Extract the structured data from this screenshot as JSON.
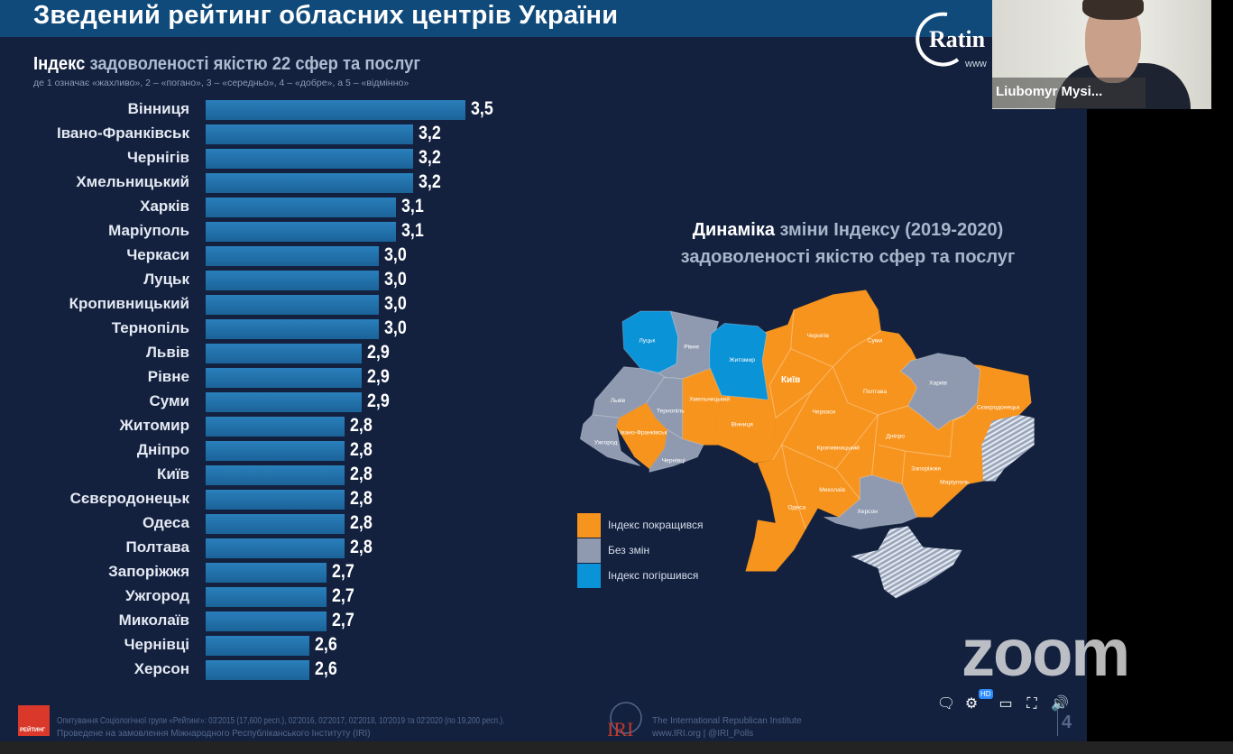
{
  "slide": {
    "title": "Зведений рейтинг обласних центрів України",
    "subtitle_bold": "Індекс",
    "subtitle_rest": " задоволеності якістю 22 сфер та послуг",
    "note": "де 1 означає «жахливо», 2 – «погано», 3 – «середньо», 4 – «добре», а 5 – «відмінно»",
    "logo_text": "Rating",
    "logo_url": "www",
    "page_number": "4"
  },
  "chart_data": {
    "type": "bar",
    "orientation": "horizontal",
    "categories": [
      "Вінниця",
      "Івано-Франківськ",
      "Чернігів",
      "Хмельницький",
      "Харків",
      "Маріуполь",
      "Черкаси",
      "Луцьк",
      "Кропивницький",
      "Тернопіль",
      "Львів",
      "Рівне",
      "Суми",
      "Житомир",
      "Дніпро",
      "Київ",
      "Сєвєродонецьк",
      "Одеса",
      "Полтава",
      "Запоріжжя",
      "Ужгород",
      "Миколаїв",
      "Чернівці",
      "Херсон"
    ],
    "values": [
      3.5,
      3.2,
      3.2,
      3.2,
      3.1,
      3.1,
      3.0,
      3.0,
      3.0,
      3.0,
      2.9,
      2.9,
      2.9,
      2.8,
      2.8,
      2.8,
      2.8,
      2.8,
      2.8,
      2.7,
      2.7,
      2.7,
      2.6,
      2.6
    ],
    "value_labels": [
      "3,5",
      "3,2",
      "3,2",
      "3,2",
      "3,1",
      "3,1",
      "3,0",
      "3,0",
      "3,0",
      "3,0",
      "2,9",
      "2,9",
      "2,9",
      "2,8",
      "2,8",
      "2,8",
      "2,8",
      "2,8",
      "2,8",
      "2,7",
      "2,7",
      "2,7",
      "2,6",
      "2,6"
    ],
    "bar_color": "#2172ab"
  },
  "map": {
    "title_bold": "Динаміка",
    "title_rest": " зміни Індексу (2019-2020)",
    "title_line2": "задоволеності якістю сфер та послуг",
    "colors": {
      "improved": "#f7941d",
      "unchanged": "#8f9ab0",
      "worsened": "#0b93d8"
    },
    "legend": [
      {
        "label": "Індекс покращився",
        "color": "#f7941d"
      },
      {
        "label": "Без змін",
        "color": "#8f9ab0"
      },
      {
        "label": "Індекс погіршився",
        "color": "#0b93d8"
      }
    ],
    "cities": [
      "Луцьк",
      "Рівне",
      "Житомир",
      "Львів",
      "Тернопіль",
      "Хмельницький",
      "Івано-Франківськ",
      "Ужгород",
      "Чернівці",
      "Вінниця",
      "Чернігів",
      "Суми",
      "Полтава",
      "Харків",
      "Черкаси",
      "Кропивницький",
      "Дніпро",
      "Сєвєродонецьк",
      "Запоріжжя",
      "Маріуполь",
      "Миколаїв",
      "Одеса",
      "Херсон"
    ],
    "capital": "Київ"
  },
  "footer": {
    "logo_text": "РЕЙТИНГ",
    "line1": "Опитування Соціологічної групи «Рейтинг»: 03'2015 (17,600 респ.), 02'2016, 02'2017, 02'2018, 10'2019 та 02'2020 (по 19,200 респ.).",
    "line2": "Проведене на замовлення Міжнародного Республіканського Інституту (IRI)",
    "iri_logo": "IRI",
    "iri_name": "The International Republican Institute",
    "iri_links": "www.IRI.org | @IRI_Polls"
  },
  "video": {
    "participant_name": "Liubomyr Mysi...",
    "watermark": "zoom",
    "hd_badge": "HD"
  }
}
